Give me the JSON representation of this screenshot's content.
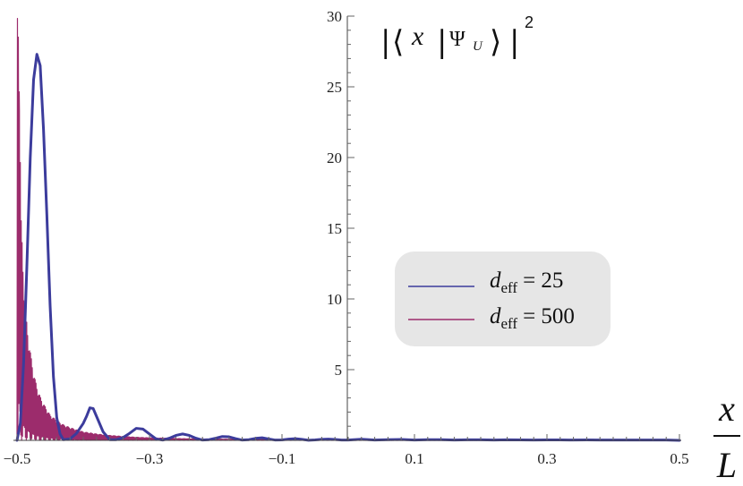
{
  "chart_data": {
    "type": "line",
    "xlabel": {
      "numerator": "x",
      "denominator": "L"
    },
    "ylabel": {
      "bra": "x",
      "ket": "Ψ",
      "ket_sub": "U",
      "power": "2"
    },
    "xlim": [
      -0.5,
      0.5
    ],
    "ylim": [
      0,
      30
    ],
    "x_ticks": [
      -0.5,
      -0.3,
      -0.1,
      0.1,
      0.3,
      0.5
    ],
    "x_tick_labels": [
      "−0.5",
      "−0.3",
      "−0.1",
      "0.1",
      "0.3",
      "0.5"
    ],
    "y_ticks": [
      5,
      10,
      15,
      20,
      25,
      30
    ],
    "y_tick_labels": [
      "5",
      "10",
      "15",
      "20",
      "25",
      "30"
    ],
    "legend_position": "right",
    "series": [
      {
        "name": "d_eff = 25",
        "legend": {
          "base": "d",
          "sub": "eff",
          "value": "= 25"
        },
        "color": "#3c3c9c",
        "points": [
          [
            -0.5,
            0.0
          ],
          [
            -0.495,
            1.2
          ],
          [
            -0.49,
            5.5
          ],
          [
            -0.485,
            12.5
          ],
          [
            -0.48,
            20.0
          ],
          [
            -0.475,
            25.5
          ],
          [
            -0.47,
            27.3
          ],
          [
            -0.465,
            26.5
          ],
          [
            -0.46,
            22.0
          ],
          [
            -0.455,
            16.0
          ],
          [
            -0.45,
            9.5
          ],
          [
            -0.445,
            4.5
          ],
          [
            -0.44,
            1.6
          ],
          [
            -0.435,
            0.45
          ],
          [
            -0.43,
            0.05
          ],
          [
            -0.42,
            0.1
          ],
          [
            -0.41,
            0.5
          ],
          [
            -0.4,
            1.2
          ],
          [
            -0.395,
            1.7
          ],
          [
            -0.39,
            2.3
          ],
          [
            -0.385,
            2.25
          ],
          [
            -0.38,
            1.7
          ],
          [
            -0.37,
            0.6
          ],
          [
            -0.36,
            0.05
          ],
          [
            -0.35,
            0.05
          ],
          [
            -0.34,
            0.2
          ],
          [
            -0.33,
            0.5
          ],
          [
            -0.32,
            0.85
          ],
          [
            -0.31,
            0.8
          ],
          [
            -0.3,
            0.45
          ],
          [
            -0.29,
            0.1
          ],
          [
            -0.28,
            0.02
          ],
          [
            -0.27,
            0.15
          ],
          [
            -0.26,
            0.35
          ],
          [
            -0.25,
            0.45
          ],
          [
            -0.24,
            0.35
          ],
          [
            -0.23,
            0.15
          ],
          [
            -0.22,
            0.02
          ],
          [
            -0.21,
            0.05
          ],
          [
            -0.2,
            0.15
          ],
          [
            -0.19,
            0.27
          ],
          [
            -0.18,
            0.25
          ],
          [
            -0.17,
            0.12
          ],
          [
            -0.16,
            0.02
          ],
          [
            -0.15,
            0.05
          ],
          [
            -0.14,
            0.14
          ],
          [
            -0.13,
            0.18
          ],
          [
            -0.12,
            0.1
          ],
          [
            -0.11,
            0.02
          ],
          [
            -0.1,
            0.03
          ],
          [
            -0.09,
            0.09
          ],
          [
            -0.08,
            0.12
          ],
          [
            -0.07,
            0.07
          ],
          [
            -0.06,
            0.01
          ],
          [
            -0.05,
            0.03
          ],
          [
            -0.04,
            0.07
          ],
          [
            -0.03,
            0.09
          ],
          [
            -0.02,
            0.06
          ],
          [
            -0.01,
            0.02
          ],
          [
            0.0,
            0.02
          ],
          [
            0.02,
            0.08
          ],
          [
            0.04,
            0.02
          ],
          [
            0.06,
            0.05
          ],
          [
            0.08,
            0.06
          ],
          [
            0.1,
            0.02
          ],
          [
            0.12,
            0.05
          ],
          [
            0.14,
            0.05
          ],
          [
            0.16,
            0.02
          ],
          [
            0.18,
            0.04
          ],
          [
            0.2,
            0.04
          ],
          [
            0.22,
            0.02
          ],
          [
            0.24,
            0.04
          ],
          [
            0.26,
            0.03
          ],
          [
            0.28,
            0.02
          ],
          [
            0.3,
            0.03
          ],
          [
            0.32,
            0.03
          ],
          [
            0.34,
            0.02
          ],
          [
            0.36,
            0.03
          ],
          [
            0.38,
            0.02
          ],
          [
            0.4,
            0.02
          ],
          [
            0.42,
            0.02
          ],
          [
            0.44,
            0.02
          ],
          [
            0.46,
            0.02
          ],
          [
            0.48,
            0.02
          ],
          [
            0.5,
            0.0
          ]
        ]
      },
      {
        "name": "d_eff = 500",
        "legend": {
          "base": "d",
          "sub": "eff",
          "value": "= 500"
        },
        "color": "#9c2c6c",
        "max_value_shown": 30,
        "envelope": [
          [
            -0.5,
            30.0
          ],
          [
            -0.497,
            30.0
          ],
          [
            -0.494,
            16.0
          ],
          [
            -0.491,
            12.5
          ],
          [
            -0.488,
            10.0
          ],
          [
            -0.485,
            8.2
          ],
          [
            -0.482,
            7.0
          ],
          [
            -0.479,
            6.0
          ],
          [
            -0.476,
            5.1
          ],
          [
            -0.473,
            4.4
          ],
          [
            -0.47,
            3.8
          ],
          [
            -0.465,
            3.1
          ],
          [
            -0.46,
            2.6
          ],
          [
            -0.455,
            2.2
          ],
          [
            -0.45,
            1.8
          ],
          [
            -0.44,
            1.4
          ],
          [
            -0.43,
            1.1
          ],
          [
            -0.42,
            0.9
          ],
          [
            -0.41,
            0.75
          ],
          [
            -0.4,
            0.6
          ],
          [
            -0.38,
            0.45
          ],
          [
            -0.36,
            0.35
          ],
          [
            -0.34,
            0.28
          ],
          [
            -0.32,
            0.22
          ],
          [
            -0.3,
            0.18
          ],
          [
            -0.25,
            0.12
          ],
          [
            -0.2,
            0.09
          ],
          [
            -0.15,
            0.07
          ],
          [
            -0.1,
            0.05
          ],
          [
            0.0,
            0.04
          ],
          [
            0.1,
            0.04
          ],
          [
            0.2,
            0.04
          ],
          [
            0.3,
            0.04
          ],
          [
            0.4,
            0.04
          ],
          [
            0.5,
            0.04
          ]
        ]
      }
    ]
  }
}
